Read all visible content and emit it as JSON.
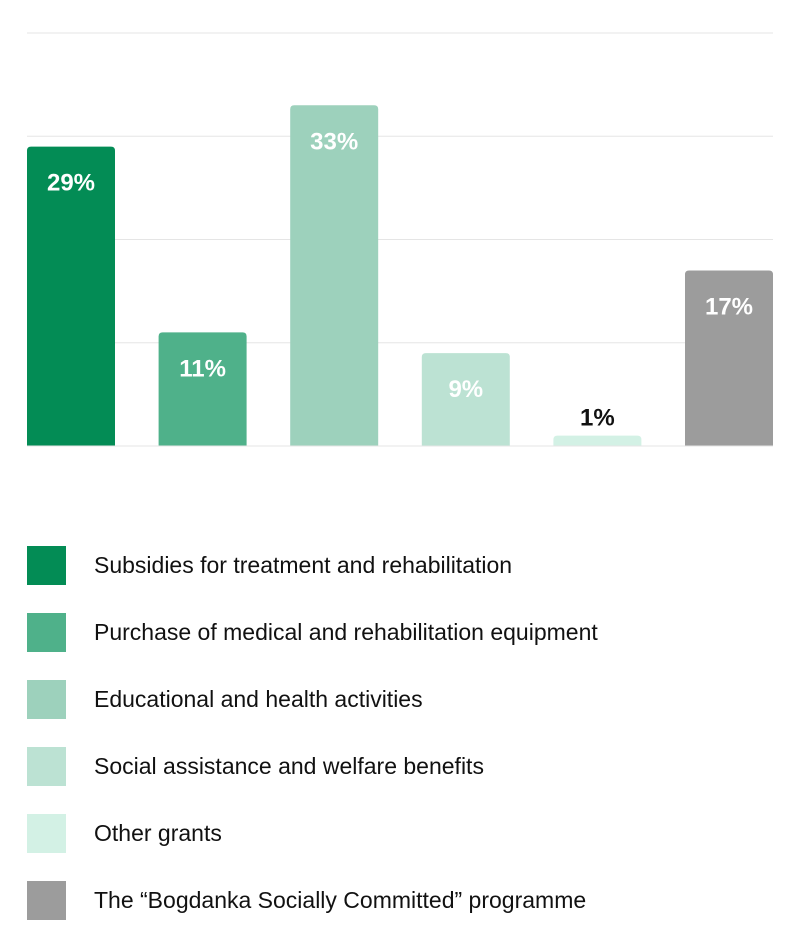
{
  "chart_data": {
    "type": "bar",
    "categories": [
      "Subsidies for treatment and rehabilitation",
      "Purchase of medical and rehabilitation equipment",
      "Educational and health activities",
      "Social assistance and welfare benefits",
      "Other grants",
      "The “Bogdanka Socially Committed” programme"
    ],
    "values": [
      29,
      11,
      33,
      9,
      1,
      17
    ],
    "value_labels": [
      "29%",
      "11%",
      "33%",
      "9%",
      "1%",
      "17%"
    ],
    "colors": [
      "#038c55",
      "#4fb18a",
      "#9dd1bc",
      "#bce2d3",
      "#d3f1e5",
      "#9c9c9c"
    ],
    "label_colors": [
      "#ffffff",
      "#ffffff",
      "#ffffff",
      "#ffffff",
      "#111111",
      "#ffffff"
    ],
    "grid_color": "#e5e5e5",
    "ylim": [
      0,
      40
    ],
    "grid": true,
    "legend_position": "bottom"
  }
}
